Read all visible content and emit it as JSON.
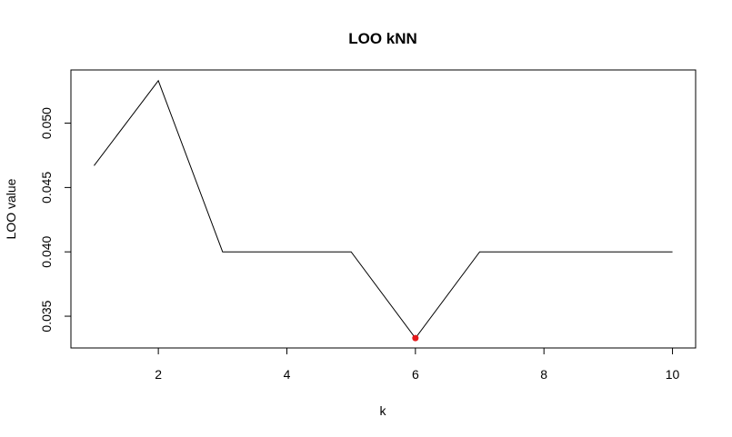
{
  "chart_data": {
    "type": "line",
    "title": "LOO kNN",
    "xlabel": "k",
    "ylabel": "LOO value",
    "x": [
      1,
      2,
      3,
      4,
      5,
      6,
      7,
      8,
      9,
      10
    ],
    "series": [
      {
        "values": [
          0.0467,
          0.0533,
          0.04,
          0.04,
          0.04,
          0.0333,
          0.04,
          0.04,
          0.04,
          0.04
        ]
      }
    ],
    "highlight": {
      "x": 6,
      "y": 0.0333,
      "color": "#e41a1c"
    },
    "xticks": [
      2,
      4,
      6,
      8,
      10
    ],
    "xtick_labels": [
      "2",
      "4",
      "6",
      "8",
      "10"
    ],
    "yticks": [
      0.035,
      0.04,
      0.045,
      0.05
    ],
    "ytick_labels": [
      "0.035",
      "0.040",
      "0.045",
      "0.050"
    ],
    "xlim": [
      0.64,
      10.36
    ],
    "ylim": [
      0.032533,
      0.054133
    ],
    "grid": false,
    "line_color": "#000000"
  }
}
